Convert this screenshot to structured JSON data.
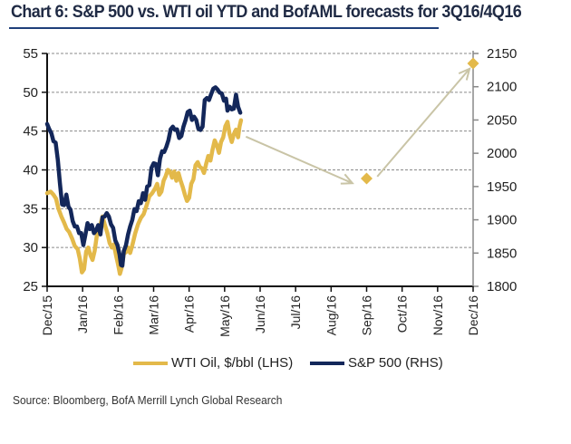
{
  "title": "Chart 6: S&P 500 vs. WTI oil YTD and BofAML forecasts for 3Q16/4Q16",
  "source": "Source: Bloomberg, BofA Merrill Lynch Global Research",
  "colors": {
    "wti": "#e3b94a",
    "sp500": "#13275a",
    "forecast_marker": "#e3b94a",
    "arrow": "#c9c4a6",
    "grid": "#8a8a8a",
    "axis": "#111111",
    "right_axis": "#888888"
  },
  "chart_data": {
    "type": "line",
    "title": "Chart 6: S&P 500 vs. WTI oil YTD and BofAML forecasts for 3Q16/4Q16",
    "x_categories": [
      "Dec/15",
      "Jan/16",
      "Feb/16",
      "Mar/16",
      "Apr/16",
      "May/16",
      "Jun/16",
      "Jul/16",
      "Aug/16",
      "Sep/16",
      "Oct/16",
      "Nov/16",
      "Dec/16"
    ],
    "x_unit": "months since Dec/15",
    "xlim": [
      0,
      12
    ],
    "y_left": {
      "label": "WTI Oil, $/bbl (LHS)",
      "ylim": [
        25,
        55
      ],
      "ticks": [
        25,
        30,
        35,
        40,
        45,
        50,
        55
      ]
    },
    "y_right": {
      "label": "S&P 500 (RHS)",
      "ylim": [
        1800,
        2150
      ],
      "ticks": [
        1800,
        1850,
        1900,
        1950,
        2000,
        2050,
        2100,
        2150
      ]
    },
    "grid": true,
    "legend_position": "bottom",
    "series": [
      {
        "name": "WTI Oil, $/bbl (LHS)",
        "axis": "left",
        "points": [
          [
            0.0,
            37.0
          ],
          [
            0.1,
            37.2
          ],
          [
            0.18,
            36.8
          ],
          [
            0.25,
            36.3
          ],
          [
            0.32,
            35.0
          ],
          [
            0.4,
            34.0
          ],
          [
            0.48,
            33.2
          ],
          [
            0.55,
            32.4
          ],
          [
            0.62,
            32.0
          ],
          [
            0.7,
            31.2
          ],
          [
            0.78,
            30.2
          ],
          [
            0.86,
            29.8
          ],
          [
            0.92,
            28.6
          ],
          [
            0.98,
            26.8
          ],
          [
            1.04,
            27.2
          ],
          [
            1.1,
            29.5
          ],
          [
            1.16,
            30.0
          ],
          [
            1.22,
            29.0
          ],
          [
            1.28,
            28.4
          ],
          [
            1.34,
            29.6
          ],
          [
            1.4,
            31.5
          ],
          [
            1.48,
            32.6
          ],
          [
            1.56,
            34.0
          ],
          [
            1.62,
            33.0
          ],
          [
            1.7,
            31.8
          ],
          [
            1.76,
            30.6
          ],
          [
            1.82,
            30.0
          ],
          [
            1.88,
            30.4
          ],
          [
            1.94,
            29.0
          ],
          [
            2.0,
            27.8
          ],
          [
            2.05,
            26.6
          ],
          [
            2.1,
            27.4
          ],
          [
            2.16,
            29.2
          ],
          [
            2.22,
            29.4
          ],
          [
            2.28,
            30.0
          ],
          [
            2.34,
            29.3
          ],
          [
            2.4,
            30.3
          ],
          [
            2.48,
            31.8
          ],
          [
            2.56,
            33.0
          ],
          [
            2.64,
            33.8
          ],
          [
            2.72,
            34.3
          ],
          [
            2.8,
            35.4
          ],
          [
            2.88,
            36.6
          ],
          [
            2.96,
            37.0
          ],
          [
            3.04,
            37.6
          ],
          [
            3.1,
            38.2
          ],
          [
            3.16,
            36.8
          ],
          [
            3.22,
            37.2
          ],
          [
            3.28,
            38.6
          ],
          [
            3.34,
            39.2
          ],
          [
            3.4,
            40.0
          ],
          [
            3.46,
            39.8
          ],
          [
            3.52,
            39.0
          ],
          [
            3.58,
            39.8
          ],
          [
            3.64,
            38.6
          ],
          [
            3.7,
            39.6
          ],
          [
            3.76,
            38.6
          ],
          [
            3.82,
            37.8
          ],
          [
            3.88,
            36.8
          ],
          [
            3.94,
            36.0
          ],
          [
            4.0,
            36.4
          ],
          [
            4.06,
            38.2
          ],
          [
            4.12,
            38.8
          ],
          [
            4.18,
            40.6
          ],
          [
            4.24,
            41.0
          ],
          [
            4.3,
            40.4
          ],
          [
            4.36,
            40.2
          ],
          [
            4.42,
            39.6
          ],
          [
            4.48,
            40.8
          ],
          [
            4.54,
            41.8
          ],
          [
            4.6,
            41.2
          ],
          [
            4.66,
            42.6
          ],
          [
            4.72,
            43.8
          ],
          [
            4.78,
            43.2
          ],
          [
            4.84,
            42.2
          ],
          [
            4.9,
            43.6
          ],
          [
            4.96,
            44.2
          ],
          [
            5.02,
            45.6
          ],
          [
            5.08,
            46.2
          ],
          [
            5.14,
            44.6
          ],
          [
            5.2,
            43.6
          ],
          [
            5.26,
            44.6
          ],
          [
            5.32,
            45.2
          ],
          [
            5.38,
            44.2
          ],
          [
            5.42,
            45.6
          ],
          [
            5.46,
            46.4
          ]
        ]
      },
      {
        "name": "S&P 500 (RHS)",
        "axis": "right",
        "points": [
          [
            0.0,
            2044
          ],
          [
            0.06,
            2036
          ],
          [
            0.12,
            2030
          ],
          [
            0.18,
            2018
          ],
          [
            0.24,
            2016
          ],
          [
            0.3,
            1990
          ],
          [
            0.36,
            1955
          ],
          [
            0.42,
            1923
          ],
          [
            0.48,
            1922
          ],
          [
            0.54,
            1938
          ],
          [
            0.6,
            1920
          ],
          [
            0.66,
            1915
          ],
          [
            0.72,
            1898
          ],
          [
            0.78,
            1890
          ],
          [
            0.84,
            1890
          ],
          [
            0.9,
            1880
          ],
          [
            0.96,
            1880
          ],
          [
            1.02,
            1862
          ],
          [
            1.08,
            1878
          ],
          [
            1.14,
            1895
          ],
          [
            1.2,
            1886
          ],
          [
            1.26,
            1892
          ],
          [
            1.32,
            1880
          ],
          [
            1.38,
            1884
          ],
          [
            1.44,
            1892
          ],
          [
            1.5,
            1878
          ],
          [
            1.56,
            1904
          ],
          [
            1.62,
            1905
          ],
          [
            1.68,
            1910
          ],
          [
            1.74,
            1905
          ],
          [
            1.8,
            1893
          ],
          [
            1.86,
            1888
          ],
          [
            1.92,
            1869
          ],
          [
            1.98,
            1862
          ],
          [
            2.04,
            1848
          ],
          [
            2.08,
            1832
          ],
          [
            2.12,
            1831
          ],
          [
            2.16,
            1853
          ],
          [
            2.22,
            1862
          ],
          [
            2.28,
            1878
          ],
          [
            2.34,
            1890
          ],
          [
            2.4,
            1900
          ],
          [
            2.46,
            1916
          ],
          [
            2.52,
            1913
          ],
          [
            2.58,
            1928
          ],
          [
            2.64,
            1925
          ],
          [
            2.7,
            1940
          ],
          [
            2.76,
            1930
          ],
          [
            2.82,
            1950
          ],
          [
            2.88,
            1952
          ],
          [
            2.94,
            1978
          ],
          [
            3.0,
            1985
          ],
          [
            3.06,
            1984
          ],
          [
            3.12,
            1967
          ],
          [
            3.18,
            1992
          ],
          [
            3.24,
            2003
          ],
          [
            3.3,
            2002
          ],
          [
            3.36,
            2010
          ],
          [
            3.42,
            2020
          ],
          [
            3.48,
            2036
          ],
          [
            3.54,
            2040
          ],
          [
            3.6,
            2035
          ],
          [
            3.66,
            2036
          ],
          [
            3.72,
            2023
          ],
          [
            3.78,
            2026
          ],
          [
            3.84,
            2040
          ],
          [
            3.9,
            2050
          ],
          [
            3.96,
            2062
          ],
          [
            4.02,
            2064
          ],
          [
            4.08,
            2050
          ],
          [
            4.14,
            2055
          ],
          [
            4.2,
            2050
          ],
          [
            4.26,
            2037
          ],
          [
            4.32,
            2035
          ],
          [
            4.38,
            2040
          ],
          [
            4.44,
            2080
          ],
          [
            4.5,
            2083
          ],
          [
            4.56,
            2080
          ],
          [
            4.62,
            2089
          ],
          [
            4.68,
            2097
          ],
          [
            4.74,
            2099
          ],
          [
            4.8,
            2096
          ],
          [
            4.86,
            2091
          ],
          [
            4.92,
            2090
          ],
          [
            4.98,
            2079
          ],
          [
            5.04,
            2082
          ],
          [
            5.08,
            2064
          ],
          [
            5.14,
            2070
          ],
          [
            5.2,
            2066
          ],
          [
            5.26,
            2067
          ],
          [
            5.32,
            2088
          ],
          [
            5.38,
            2070
          ],
          [
            5.44,
            2061
          ]
        ]
      }
    ],
    "forecasts": [
      {
        "name": "3Q16 forecast",
        "x": 9.0,
        "value": 1962,
        "axis": "right"
      },
      {
        "name": "4Q16 forecast",
        "x": 12.0,
        "value": 2135,
        "axis": "right"
      }
    ],
    "arrows": [
      {
        "from": [
          5.6,
          2025
        ],
        "to": [
          8.6,
          1955
        ]
      },
      {
        "from": [
          9.3,
          1965
        ],
        "to": [
          11.9,
          2127
        ]
      }
    ]
  },
  "legend": [
    {
      "label": "WTI Oil, $/bbl (LHS)"
    },
    {
      "label": "S&P 500 (RHS)"
    }
  ]
}
